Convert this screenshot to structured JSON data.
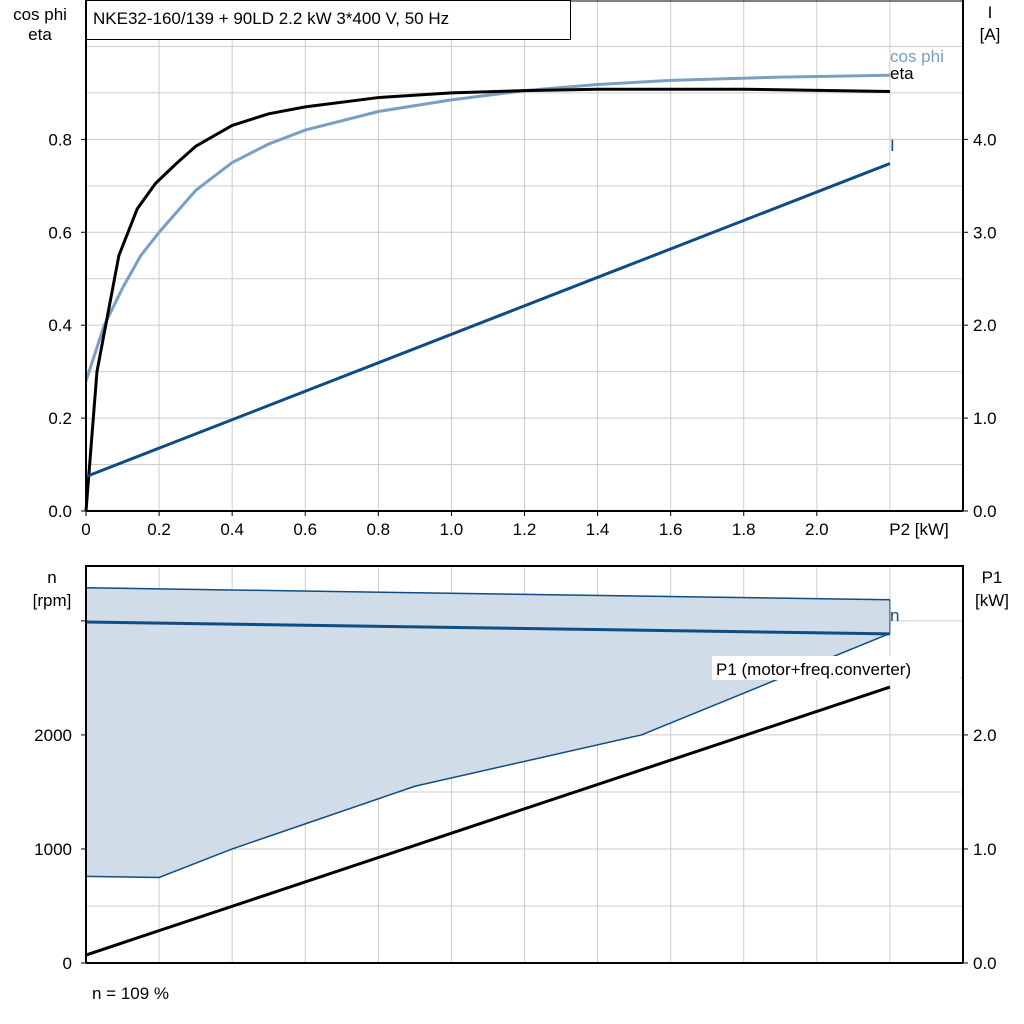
{
  "title": "NKE32-160/139 + 90LD   2.2 kW   3*400 V, 50 Hz",
  "footer": "n = 109 %",
  "colors": {
    "eta": "#000000",
    "cos_phi": "#7a9fc2",
    "current": "#0f4c81",
    "speed": "#0f4c81",
    "band_fill": "#d0dce8",
    "p1": "#000000",
    "grid": "#cccccc"
  },
  "chart_data": [
    {
      "type": "line",
      "xlabel": "P2 [kW]",
      "ylabel_left": [
        "cos phi",
        "eta"
      ],
      "ylabel_right": [
        "I",
        "[A]"
      ],
      "xlim": [
        0,
        2.4
      ],
      "ylim_left": [
        0,
        1.1
      ],
      "ylim_right": [
        0,
        5.5
      ],
      "grid": true,
      "x_ticks": [
        "0",
        "0.2",
        "0.4",
        "0.6",
        "0.8",
        "1.0",
        "1.2",
        "1.4",
        "1.6",
        "1.8",
        "2.0"
      ],
      "y_ticks_left": [
        "0.0",
        "0.2",
        "0.4",
        "0.6",
        "0.8"
      ],
      "y_ticks_right": [
        "0.0",
        "1.0",
        "2.0",
        "3.0",
        "4.0"
      ],
      "series": [
        {
          "name": "eta",
          "axis": "left",
          "x": [
            0,
            0.03,
            0.09,
            0.14,
            0.19,
            0.25,
            0.3,
            0.4,
            0.5,
            0.6,
            0.8,
            1.0,
            1.2,
            1.4,
            1.8,
            2.2
          ],
          "y": [
            0,
            0.3,
            0.55,
            0.65,
            0.705,
            0.75,
            0.785,
            0.83,
            0.855,
            0.87,
            0.89,
            0.9,
            0.905,
            0.908,
            0.908,
            0.903
          ]
        },
        {
          "name": "cos phi",
          "axis": "left",
          "x": [
            0,
            0.05,
            0.1,
            0.15,
            0.2,
            0.3,
            0.4,
            0.5,
            0.6,
            0.8,
            1.0,
            1.2,
            1.4,
            1.6,
            1.9,
            2.2
          ],
          "y": [
            0.28,
            0.4,
            0.48,
            0.55,
            0.6,
            0.69,
            0.75,
            0.79,
            0.82,
            0.86,
            0.885,
            0.905,
            0.918,
            0.927,
            0.934,
            0.938
          ]
        },
        {
          "name": "I",
          "axis": "right",
          "x": [
            0,
            2.2
          ],
          "y": [
            0.37,
            3.74
          ]
        }
      ]
    },
    {
      "type": "line",
      "ylabel_left": [
        "n",
        "[rpm]"
      ],
      "ylabel_right": [
        "P1",
        "[kW]"
      ],
      "xlim": [
        0,
        2.4
      ],
      "ylim_left": [
        0,
        3490
      ],
      "ylim_right": [
        0,
        3.49
      ],
      "grid": true,
      "y_ticks_left": [
        "0",
        "1000",
        "2000"
      ],
      "y_ticks_right": [
        "0.0",
        "1.0",
        "2.0"
      ],
      "band": {
        "x_upper": [
          0,
          2.2
        ],
        "upper": [
          3290,
          3185
        ],
        "x_lower": [
          0,
          0.2,
          0.4,
          0.9,
          1.52,
          2.2
        ],
        "lower": [
          760,
          750,
          1000,
          1550,
          2000,
          2890
        ]
      },
      "series": [
        {
          "name": "n",
          "axis": "left",
          "x": [
            0,
            2.2
          ],
          "y": [
            2990,
            2886
          ]
        },
        {
          "name": "P1 (motor+freq.converter)",
          "axis": "right",
          "x": [
            0,
            2.2
          ],
          "y": [
            0.07,
            2.42
          ]
        }
      ]
    }
  ]
}
